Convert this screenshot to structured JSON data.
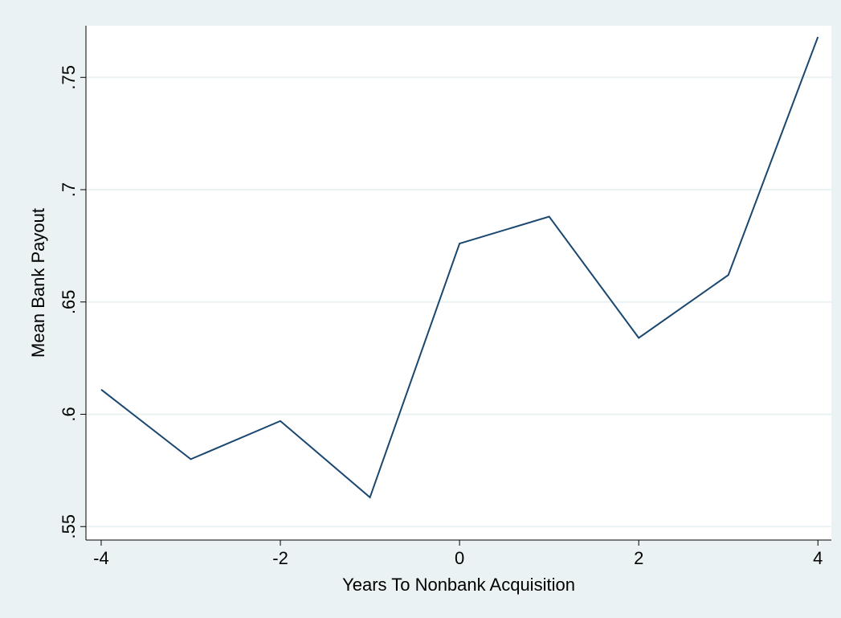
{
  "chart_data": {
    "type": "line",
    "x_label": "Years To Nonbank Acquisition",
    "y_label": "Mean Bank Payout",
    "x": [
      -4,
      -3,
      -2,
      -1,
      0,
      1,
      2,
      3,
      4
    ],
    "series": [
      {
        "color": "#1a476f",
        "values": [
          0.611,
          0.58,
          0.597,
          0.563,
          0.676,
          0.688,
          0.634,
          0.662,
          0.768
        ]
      }
    ],
    "xlim": [
      -4.17,
      4.15
    ],
    "ylim": [
      0.544,
      0.773
    ],
    "xticks": [
      -4,
      -2,
      0,
      2,
      4
    ],
    "yticks": [
      {
        "value": 0.55,
        "label": ".55"
      },
      {
        "value": 0.6,
        "label": ".6"
      },
      {
        "value": 0.65,
        "label": ".65"
      },
      {
        "value": 0.7,
        "label": ".7"
      },
      {
        "value": 0.75,
        "label": ".75"
      }
    ],
    "grid": true
  }
}
